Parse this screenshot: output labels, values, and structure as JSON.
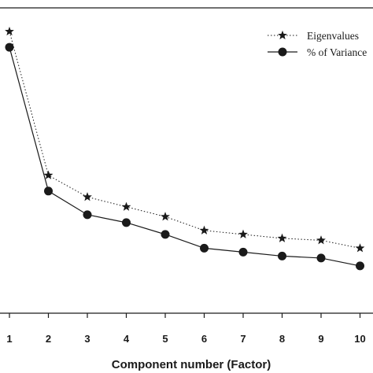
{
  "chart_data": {
    "type": "line",
    "xlabel": "Component number (Factor)",
    "x": [
      1,
      2,
      3,
      4,
      5,
      6,
      7,
      8,
      9,
      10
    ],
    "x_tick_labels": [
      "1",
      "2",
      "3",
      "4",
      "5",
      "6",
      "7",
      "8",
      "9",
      "10"
    ],
    "series": [
      {
        "name": "Eigenvalues",
        "marker": "star",
        "line_style": "dotted",
        "values": [
          9.65,
          6.0,
          5.45,
          5.2,
          4.95,
          4.6,
          4.5,
          4.4,
          4.35,
          4.15
        ]
      },
      {
        "name": "% of Variance",
        "marker": "circle",
        "line_style": "solid",
        "values": [
          9.25,
          5.6,
          5.0,
          4.8,
          4.5,
          4.15,
          4.05,
          3.95,
          3.9,
          3.7
        ]
      }
    ],
    "ylim": [
      2.5,
      10.25
    ],
    "y_axis_visible": false,
    "grid": false,
    "legend": "top-right",
    "colors": {
      "line": "#1a1a1a",
      "background": "#ffffff"
    }
  }
}
